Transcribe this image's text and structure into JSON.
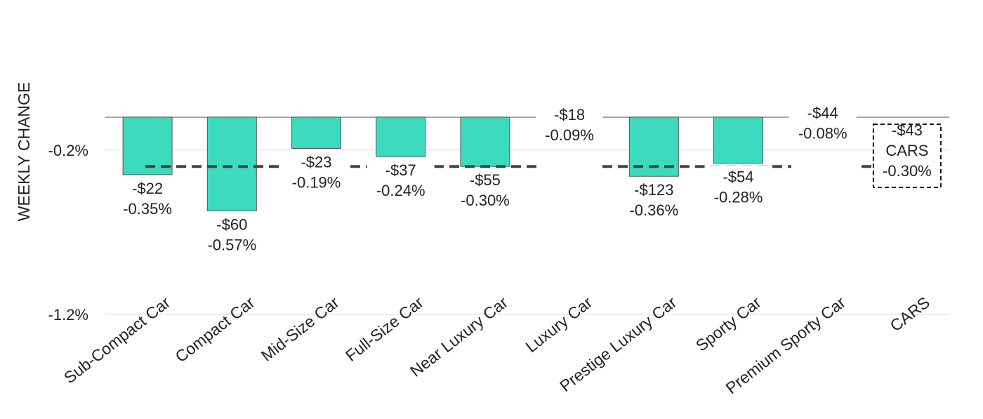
{
  "chart_data": {
    "type": "bar",
    "title": "",
    "xlabel": "",
    "ylabel": "WEEKLY CHANGE",
    "categories": [
      "Sub-Compact Car",
      "Compact Car",
      "Mid-Size Car",
      "Full-Size Car",
      "Near Luxury Car",
      "Luxury Car",
      "Prestige Luxury Car",
      "Sporty Car",
      "Premium Sporty Car",
      "CARS"
    ],
    "series": [
      {
        "values": [
          -0.35,
          -0.57,
          -0.19,
          -0.24,
          -0.3,
          -0.09,
          -0.36,
          -0.28,
          -0.08,
          null
        ]
      }
    ],
    "value_labels": [
      [
        "-$22",
        "-0.35%"
      ],
      [
        "-$60",
        "-0.57%"
      ],
      [
        "-$23",
        "-0.19%"
      ],
      [
        "-$37",
        "-0.24%"
      ],
      [
        "-$55",
        "-0.30%"
      ],
      [
        "-$18",
        "-0.09%"
      ],
      [
        "-$123",
        "-0.36%"
      ],
      [
        "-$54",
        "-0.28%"
      ],
      [
        "-$44",
        "-0.08%"
      ],
      [
        "-$43",
        "CARS",
        "-0.30%"
      ]
    ],
    "average_line": -0.3,
    "yticks": [
      {
        "value": -0.2,
        "label": "-0.2%"
      },
      {
        "value": -1.2,
        "label": "-1.2%"
      }
    ],
    "ylim": [
      -1.2,
      0.0
    ],
    "grid": true,
    "colors": {
      "bar_fill": "#3ddbbd",
      "bar_stroke": "#555555",
      "average_line": "#444444",
      "grid": "#d9d9d9",
      "zero_axis": "#888888",
      "callout_border": "#111111"
    }
  }
}
